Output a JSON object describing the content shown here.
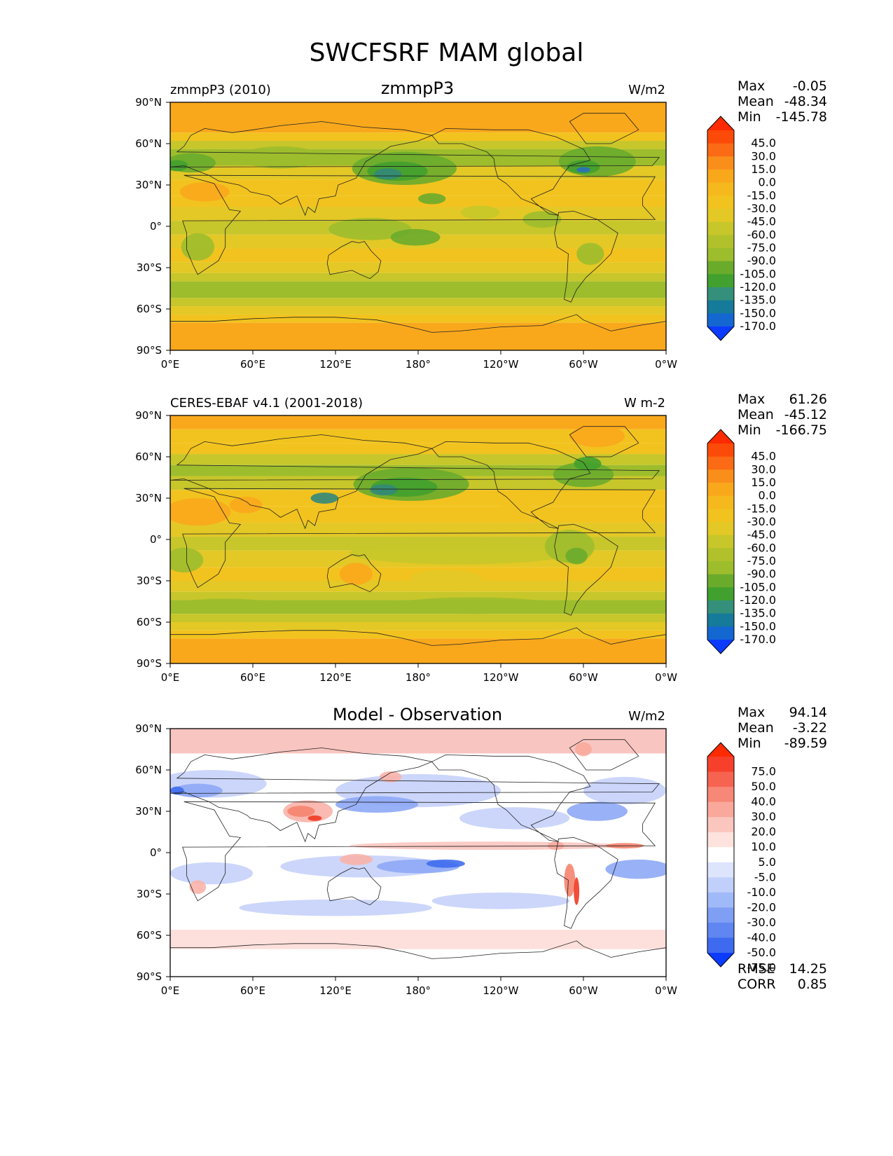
{
  "figure": {
    "title": "SWCFSRF MAM global"
  },
  "colors": {
    "orange": "#f9a81c",
    "gold": "#f2c31e",
    "yellow": "#e3c826",
    "olive": "#c7c62a",
    "lightgreen": "#9dbd2c",
    "green": "#6aab2c",
    "darkgreen": "#41a02e",
    "teal": "#33887a",
    "blue": "#2a6fbd",
    "pink": "#f9c5c0",
    "red": "#ef3a25",
    "lightblue": "#c6d2fb",
    "midblue": "#8ea8f5",
    "deepblue": "#3f6ded"
  },
  "chart_data": [
    {
      "type": "heatmap",
      "title": "zmmpP3",
      "left_label": "zmmpP3 (2010)",
      "units": "W/m2",
      "xticks": [
        "0°E",
        "60°E",
        "120°E",
        "180°",
        "120°W",
        "60°W",
        "0°W"
      ],
      "yticks": [
        "90°N",
        "60°N",
        "30°N",
        "0°",
        "30°S",
        "60°S",
        "90°S"
      ],
      "xlim": [
        0,
        360
      ],
      "ylim": [
        -90,
        90
      ],
      "stats": {
        "max_label": "Max",
        "max": "-0.05",
        "mean_label": "Mean",
        "mean": "-48.34",
        "min_label": "Min",
        "min": "-145.78"
      },
      "colorbar": {
        "levels": [
          "45.0",
          "30.0",
          "15.0",
          "0.0",
          "-15.0",
          "-30.0",
          "-45.0",
          "-60.0",
          "-75.0",
          "-90.0",
          "-105.0",
          "-120.0",
          "-135.0",
          "-150.0",
          "-170.0"
        ],
        "colors": [
          "#fe2a00",
          "#fc4a09",
          "#fb6a14",
          "#fa8e1b",
          "#f9a81c",
          "#f5b81d",
          "#f2c31e",
          "#e3c826",
          "#c7c62a",
          "#b1c12b",
          "#9dbd2c",
          "#6aab2c",
          "#41a02e",
          "#34907a",
          "#167a9a",
          "#1466d0",
          "#0b3bff"
        ]
      }
    },
    {
      "type": "heatmap",
      "title": "",
      "left_label": "CERES-EBAF v4.1 (2001-2018)",
      "units": "W m-2",
      "xticks": [
        "0°E",
        "60°E",
        "120°E",
        "180°",
        "120°W",
        "60°W",
        "0°W"
      ],
      "yticks": [
        "90°N",
        "60°N",
        "30°N",
        "0°",
        "30°S",
        "60°S",
        "90°S"
      ],
      "xlim": [
        0,
        360
      ],
      "ylim": [
        -90,
        90
      ],
      "stats": {
        "max_label": "Max",
        "max": "61.26",
        "mean_label": "Mean",
        "mean": "-45.12",
        "min_label": "Min",
        "min": "-166.75"
      },
      "colorbar": {
        "levels": [
          "45.0",
          "30.0",
          "15.0",
          "0.0",
          "-15.0",
          "-30.0",
          "-45.0",
          "-60.0",
          "-75.0",
          "-90.0",
          "-105.0",
          "-120.0",
          "-135.0",
          "-150.0",
          "-170.0"
        ],
        "colors": [
          "#fe2a00",
          "#fc4a09",
          "#fb6a14",
          "#fa8e1b",
          "#f9a81c",
          "#f5b81d",
          "#f2c31e",
          "#e3c826",
          "#c7c62a",
          "#b1c12b",
          "#9dbd2c",
          "#6aab2c",
          "#41a02e",
          "#34907a",
          "#167a9a",
          "#1466d0",
          "#0b3bff"
        ]
      }
    },
    {
      "type": "heatmap",
      "title": "Model - Observation",
      "left_label": "",
      "units": "W/m2",
      "xticks": [
        "0°E",
        "60°E",
        "120°E",
        "180°",
        "120°W",
        "60°W",
        "0°W"
      ],
      "yticks": [
        "90°N",
        "60°N",
        "30°N",
        "0°",
        "30°S",
        "60°S",
        "90°S"
      ],
      "xlim": [
        0,
        360
      ],
      "ylim": [
        -90,
        90
      ],
      "stats": {
        "max_label": "Max",
        "max": "94.14",
        "mean_label": "Mean",
        "mean": "-3.22",
        "min_label": "Min",
        "min": "-89.59"
      },
      "extra_stats": {
        "rmse_label": "RMSE",
        "rmse": "14.25",
        "corr_label": "CORR",
        "corr": "0.85"
      },
      "colorbar": {
        "levels": [
          "75.0",
          "50.0",
          "40.0",
          "30.0",
          "20.0",
          "10.0",
          "5.0",
          "-5.0",
          "-10.0",
          "-20.0",
          "-30.0",
          "-40.0",
          "-50.0",
          "-75.0"
        ],
        "colors": [
          "#fe2a00",
          "#f7402c",
          "#f66350",
          "#f78776",
          "#f9a89b",
          "#fbc6bd",
          "#fde2dd",
          "#ffffff",
          "#dde5fd",
          "#c0d0fb",
          "#a0b9f8",
          "#7f9ff5",
          "#5f86f1",
          "#3d6aef",
          "#0b3bff"
        ]
      }
    }
  ]
}
